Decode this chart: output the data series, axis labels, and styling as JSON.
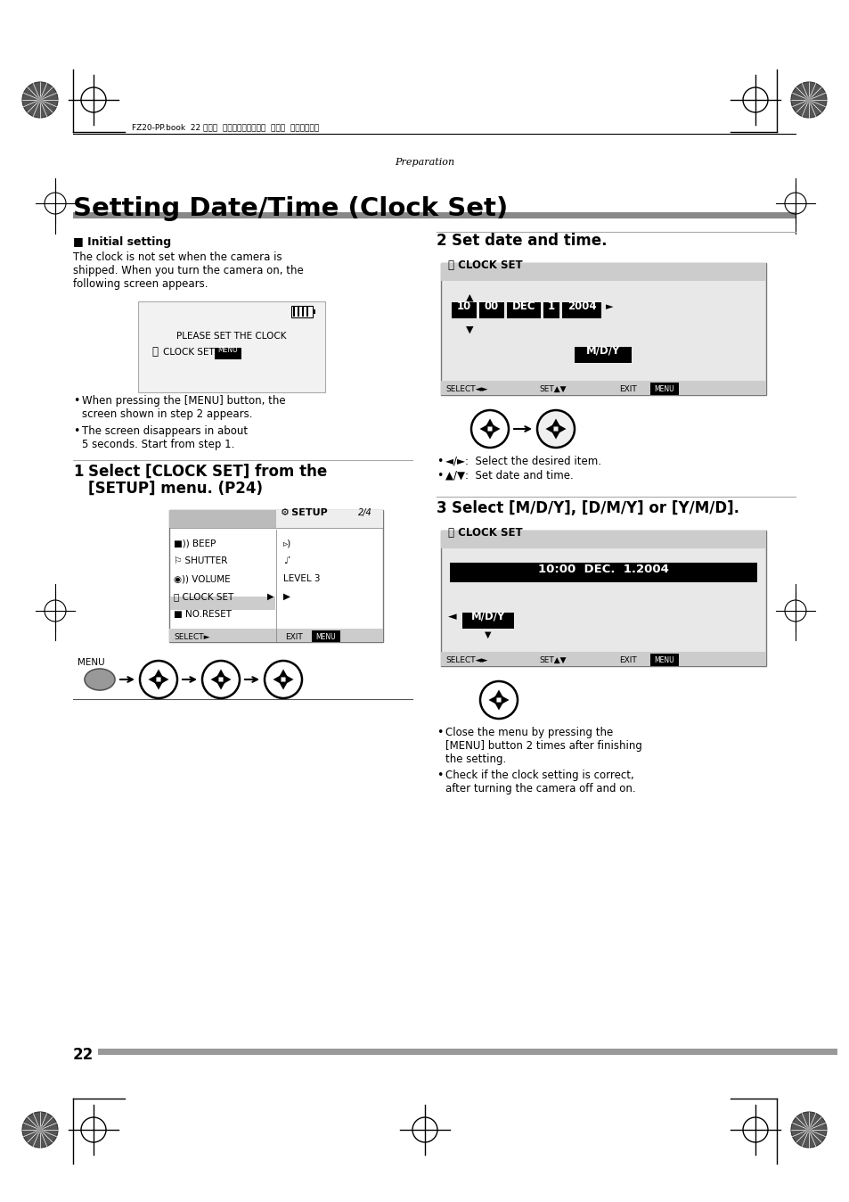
{
  "bg_color": "#ffffff",
  "page_number": "22",
  "header_jp_text": "FZ20-PP.book  22 ページ  ２００４年７月６日  火曜日  午後２時６分",
  "section_label": "Preparation",
  "page_title": "Setting Date/Time (Clock Set)",
  "initial_heading": "■ Initial setting",
  "initial_body_line1": "The clock is not set when the camera is",
  "initial_body_line2": "shipped. When you turn the camera on, the",
  "initial_body_line3": "following screen appears.",
  "please_line1": "PLEASE SET THE CLOCK",
  "please_line2": "CLOCK SET",
  "bullet_l1_line1": "When pressing the [MENU] button, the",
  "bullet_l1_line2": "  screen shown in step 2 appears.",
  "bullet_l2_line1": "The screen disappears in about",
  "bullet_l2_line2": "  5 seconds. Start from step 1.",
  "step1_line1": "1 Select [CLOCK SET] from the",
  "step1_line2": "   [SETUP] menu. (P24)",
  "step2_head": "2 Set date and time.",
  "step3_head": "3 Select [M/D/Y], [D/M/Y] or [Y/M/D].",
  "menu_label": "MENU",
  "setup_title_right": "2/4",
  "setup_item1_l": "■)) BEEP",
  "setup_item2_l": "⚐ SHUTTER",
  "setup_item3_l": "◉)) VOLUME",
  "setup_item4_l": "⌚ CLOCK SET",
  "setup_item5_l": "■ NO.RESET",
  "setup_level": "LEVEL 3",
  "clock_header": "⌚ CLOCK SET",
  "clock_val1": "10",
  "clock_val2": "00",
  "clock_val3": "DEC",
  "clock_val4": "1",
  "clock_val5": "2004",
  "clock_mdy": "M/D/Y",
  "clock_date_display": "10:00  DEC.  1.2004",
  "select_label": "SELECT",
  "set_label": "SET",
  "exit_label": "EXIT",
  "menu_box_label": "MENU",
  "bullet_r2_1": "◄/►:  Select the desired item.",
  "bullet_r2_2": "▲/▼:  Set date and time.",
  "bullet_r3_1_l1": "Close the menu by pressing the",
  "bullet_r3_1_l2": "  [MENU] button 2 times after finishing",
  "bullet_r3_1_l3": "  the setting.",
  "bullet_r3_2_l1": "Check if the clock setting is correct,",
  "bullet_r3_2_l2": "  after turning the camera off and on.",
  "gray_color": "#aaaaaa",
  "dark_gray": "#888888",
  "light_gray": "#e0e0e0",
  "panel_bg": "#d8d8d8"
}
